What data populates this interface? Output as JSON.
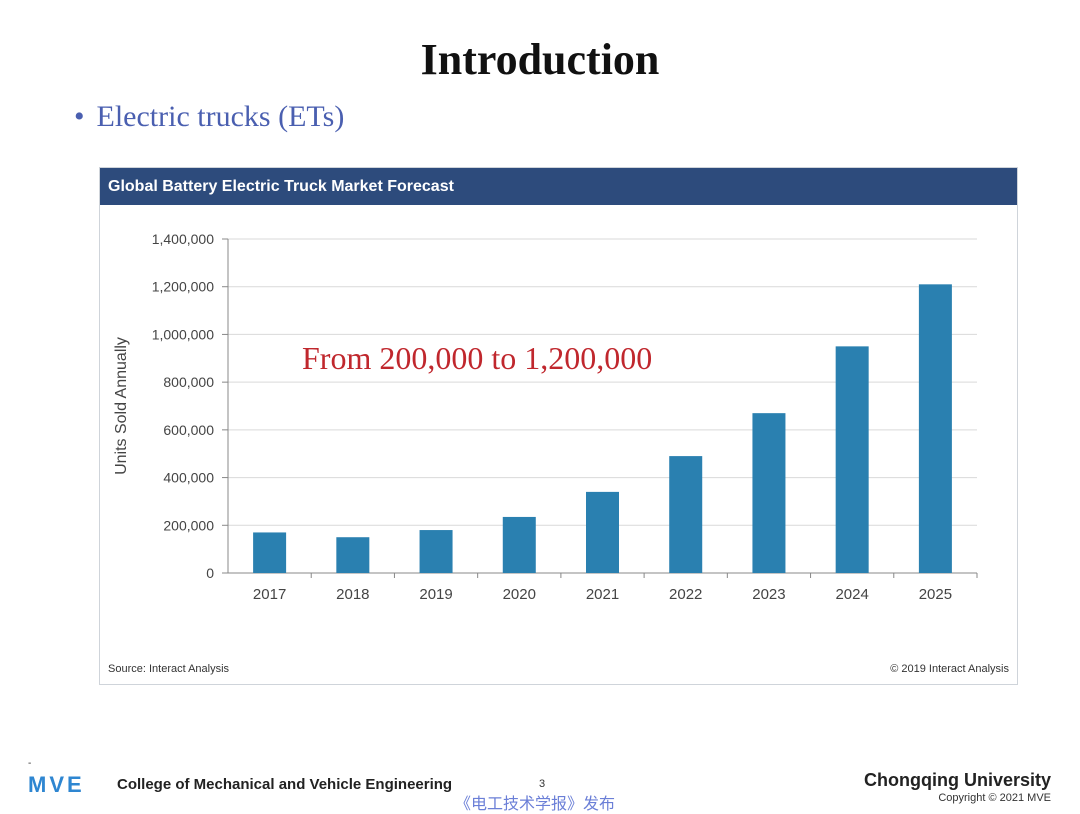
{
  "slide": {
    "title": "Introduction",
    "bullet_symbol": "•",
    "bullet_text": "Electric trucks (ETs)",
    "annotation": "From 200,000 to 1,200,000"
  },
  "chart_header": "Global Battery Electric Truck Market Forecast",
  "chart_source": "Source: Interact Analysis",
  "chart_copyright": "© 2019 Interact Analysis",
  "chart_data": {
    "type": "bar",
    "title": "Global Battery Electric Truck Market Forecast",
    "categories": [
      "2017",
      "2018",
      "2019",
      "2020",
      "2021",
      "2022",
      "2023",
      "2024",
      "2025"
    ],
    "values": [
      170000,
      150000,
      180000,
      235000,
      340000,
      490000,
      670000,
      950000,
      1210000
    ],
    "xlabel": "",
    "ylabel": "Units Sold Annually",
    "ylim": [
      0,
      1400000
    ],
    "yticks": [
      0,
      200000,
      400000,
      600000,
      800000,
      1000000,
      1200000,
      1400000
    ],
    "ytick_labels": [
      "0",
      "200,000",
      "400,000",
      "600,000",
      "800,000",
      "1,000,000",
      "1,200,000",
      "1,400,000"
    ],
    "grid": true,
    "bar_color": "#2a80b0"
  },
  "footer": {
    "logo": "MVE",
    "college": "College of Mechanical and Vehicle Engineering",
    "page_number": "3",
    "publisher": "《电工技术学报》发布",
    "university": "Chongqing University",
    "copyright": "Copyright © 2021 MVE",
    "dash": "-"
  }
}
